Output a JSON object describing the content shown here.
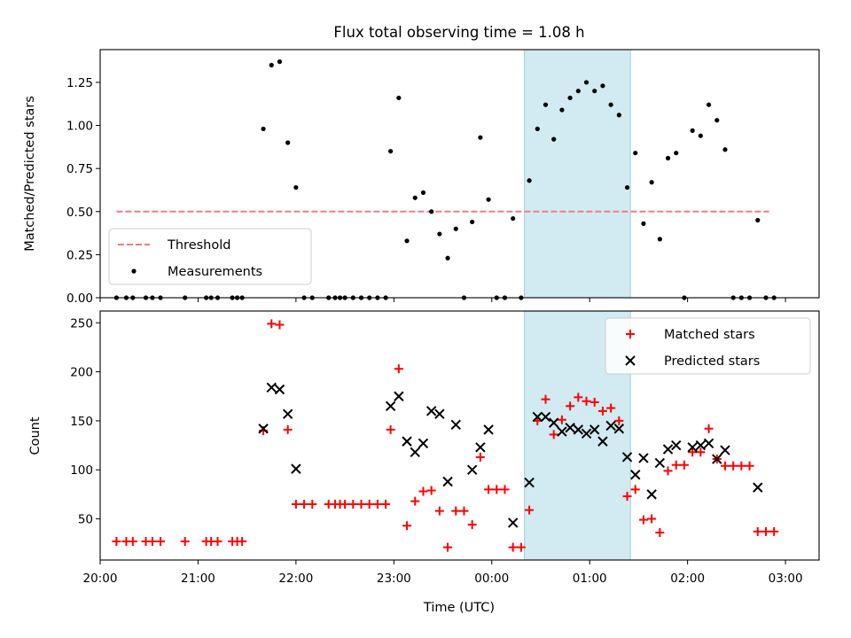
{
  "chart_data": [
    {
      "type": "scatter",
      "panel": "top",
      "title": "Flux total observing time = 1.08 h",
      "ylabel": "Matched/Predicted stars",
      "xlabel": "",
      "xlim": [
        "20:00",
        "03:15"
      ],
      "ylim": [
        0,
        1.44
      ],
      "yticks": [
        "0.00",
        "0.25",
        "0.50",
        "0.75",
        "1.00",
        "1.25"
      ],
      "highlight": {
        "from": "00:20",
        "to": "01:25",
        "color": "#add8e6"
      },
      "legend": {
        "placement": "lower-left"
      },
      "series": [
        {
          "name": "Threshold",
          "kind": "line",
          "color": "#f27d7d",
          "points": [
            [
              "20:10",
              0.5
            ],
            [
              "02:50",
              0.5
            ]
          ]
        },
        {
          "name": "Measurements",
          "kind": "dots",
          "color": "#000000",
          "points": [
            [
              "20:10",
              0
            ],
            [
              "20:16",
              0
            ],
            [
              "20:20",
              0
            ],
            [
              "20:28",
              0
            ],
            [
              "20:32",
              0
            ],
            [
              "20:37",
              0
            ],
            [
              "20:52",
              0
            ],
            [
              "21:05",
              0
            ],
            [
              "21:08",
              0
            ],
            [
              "21:12",
              0
            ],
            [
              "21:21",
              0
            ],
            [
              "21:24",
              0
            ],
            [
              "21:27",
              0
            ],
            [
              "21:40",
              0.98
            ],
            [
              "21:45",
              1.35
            ],
            [
              "21:50",
              1.37
            ],
            [
              "21:55",
              0.9
            ],
            [
              "22:00",
              0.64
            ],
            [
              "22:05",
              0
            ],
            [
              "22:10",
              0
            ],
            [
              "22:20",
              0
            ],
            [
              "22:24",
              0
            ],
            [
              "22:27",
              0
            ],
            [
              "22:30",
              0
            ],
            [
              "22:35",
              0
            ],
            [
              "22:40",
              0
            ],
            [
              "22:45",
              0
            ],
            [
              "22:50",
              0
            ],
            [
              "22:55",
              0
            ],
            [
              "22:58",
              0.85
            ],
            [
              "23:03",
              1.16
            ],
            [
              "23:08",
              0.33
            ],
            [
              "23:13",
              0.58
            ],
            [
              "23:18",
              0.61
            ],
            [
              "23:23",
              0.5
            ],
            [
              "23:28",
              0.37
            ],
            [
              "23:33",
              0.23
            ],
            [
              "23:38",
              0.4
            ],
            [
              "23:43",
              0
            ],
            [
              "23:48",
              0.44
            ],
            [
              "23:53",
              0.93
            ],
            [
              "23:58",
              0.57
            ],
            [
              "00:03",
              0
            ],
            [
              "00:08",
              0
            ],
            [
              "00:13",
              0.46
            ],
            [
              "00:18",
              0
            ],
            [
              "00:23",
              0.68
            ],
            [
              "00:28",
              0.98
            ],
            [
              "00:33",
              1.12
            ],
            [
              "00:38",
              0.92
            ],
            [
              "00:43",
              1.09
            ],
            [
              "00:48",
              1.16
            ],
            [
              "00:53",
              1.2
            ],
            [
              "00:58",
              1.25
            ],
            [
              "01:03",
              1.2
            ],
            [
              "01:08",
              1.23
            ],
            [
              "01:13",
              1.12
            ],
            [
              "01:18",
              1.06
            ],
            [
              "01:23",
              0.64
            ],
            [
              "01:28",
              0.84
            ],
            [
              "01:33",
              0.43
            ],
            [
              "01:38",
              0.67
            ],
            [
              "01:43",
              0.34
            ],
            [
              "01:48",
              0.81
            ],
            [
              "01:53",
              0.84
            ],
            [
              "01:58",
              0
            ],
            [
              "02:03",
              0.97
            ],
            [
              "02:08",
              0.94
            ],
            [
              "02:13",
              1.12
            ],
            [
              "02:18",
              1.03
            ],
            [
              "02:23",
              0.86
            ],
            [
              "02:28",
              0
            ],
            [
              "02:33",
              0
            ],
            [
              "02:38",
              0
            ],
            [
              "02:43",
              0.45
            ],
            [
              "02:48",
              0
            ],
            [
              "02:53",
              0
            ]
          ]
        }
      ]
    },
    {
      "type": "scatter",
      "panel": "bottom",
      "ylabel": "Count",
      "xlabel": "Time (UTC)",
      "xlim": [
        "20:00",
        "03:15"
      ],
      "ylim": [
        8,
        262
      ],
      "yticks": [
        "50",
        "100",
        "150",
        "200",
        "250"
      ],
      "xticks": [
        "20:00",
        "21:00",
        "22:00",
        "23:00",
        "00:00",
        "01:00",
        "02:00",
        "03:00"
      ],
      "highlight": {
        "from": "00:20",
        "to": "01:25",
        "color": "#add8e6"
      },
      "legend": {
        "placement": "upper-right"
      },
      "series": [
        {
          "name": "Matched stars",
          "kind": "plus",
          "color": "#ff0000",
          "points": [
            [
              "20:10",
              27
            ],
            [
              "20:16",
              27
            ],
            [
              "20:20",
              27
            ],
            [
              "20:28",
              27
            ],
            [
              "20:32",
              27
            ],
            [
              "20:37",
              27
            ],
            [
              "20:52",
              27
            ],
            [
              "21:05",
              27
            ],
            [
              "21:08",
              27
            ],
            [
              "21:12",
              27
            ],
            [
              "21:21",
              27
            ],
            [
              "21:24",
              27
            ],
            [
              "21:27",
              27
            ],
            [
              "21:40",
              140
            ],
            [
              "21:45",
              249
            ],
            [
              "21:50",
              248
            ],
            [
              "21:55",
              141
            ],
            [
              "22:00",
              65
            ],
            [
              "22:05",
              65
            ],
            [
              "22:10",
              65
            ],
            [
              "22:20",
              65
            ],
            [
              "22:24",
              65
            ],
            [
              "22:27",
              65
            ],
            [
              "22:30",
              65
            ],
            [
              "22:35",
              65
            ],
            [
              "22:40",
              65
            ],
            [
              "22:45",
              65
            ],
            [
              "22:50",
              65
            ],
            [
              "22:55",
              65
            ],
            [
              "22:58",
              141
            ],
            [
              "23:03",
              203
            ],
            [
              "23:08",
              43
            ],
            [
              "23:13",
              68
            ],
            [
              "23:18",
              78
            ],
            [
              "23:23",
              79
            ],
            [
              "23:28",
              58
            ],
            [
              "23:33",
              21
            ],
            [
              "23:38",
              58
            ],
            [
              "23:43",
              58
            ],
            [
              "23:48",
              44
            ],
            [
              "23:53",
              113
            ],
            [
              "23:58",
              80
            ],
            [
              "00:03",
              80
            ],
            [
              "00:08",
              80
            ],
            [
              "00:13",
              21
            ],
            [
              "00:18",
              21
            ],
            [
              "00:23",
              59
            ],
            [
              "00:28",
              150
            ],
            [
              "00:33",
              172
            ],
            [
              "00:38",
              136
            ],
            [
              "00:43",
              151
            ],
            [
              "00:48",
              165
            ],
            [
              "00:53",
              174
            ],
            [
              "00:58",
              170
            ],
            [
              "01:03",
              169
            ],
            [
              "01:08",
              160
            ],
            [
              "01:13",
              163
            ],
            [
              "01:18",
              150
            ],
            [
              "01:23",
              73
            ],
            [
              "01:28",
              80
            ],
            [
              "01:33",
              49
            ],
            [
              "01:38",
              50
            ],
            [
              "01:43",
              36
            ],
            [
              "01:48",
              99
            ],
            [
              "01:53",
              105
            ],
            [
              "01:58",
              105
            ],
            [
              "02:03",
              118
            ],
            [
              "02:08",
              118
            ],
            [
              "02:13",
              142
            ],
            [
              "02:18",
              111
            ],
            [
              "02:23",
              104
            ],
            [
              "02:28",
              104
            ],
            [
              "02:33",
              104
            ],
            [
              "02:38",
              104
            ],
            [
              "02:43",
              37
            ],
            [
              "02:48",
              37
            ],
            [
              "02:53",
              37
            ]
          ]
        },
        {
          "name": "Predicted stars",
          "kind": "cross",
          "color": "#000000",
          "points": [
            [
              "21:40",
              142
            ],
            [
              "21:45",
              184
            ],
            [
              "21:50",
              182
            ],
            [
              "21:55",
              157
            ],
            [
              "22:00",
              101
            ],
            [
              "22:58",
              165
            ],
            [
              "23:03",
              175
            ],
            [
              "23:08",
              129
            ],
            [
              "23:13",
              118
            ],
            [
              "23:18",
              127
            ],
            [
              "23:23",
              160
            ],
            [
              "23:28",
              157
            ],
            [
              "23:33",
              88
            ],
            [
              "23:38",
              146
            ],
            [
              "23:48",
              100
            ],
            [
              "23:53",
              123
            ],
            [
              "23:58",
              141
            ],
            [
              "00:13",
              46
            ],
            [
              "00:23",
              87
            ],
            [
              "00:28",
              154
            ],
            [
              "00:33",
              154
            ],
            [
              "00:38",
              148
            ],
            [
              "00:43",
              139
            ],
            [
              "00:48",
              143
            ],
            [
              "00:53",
              141
            ],
            [
              "00:58",
              137
            ],
            [
              "01:03",
              141
            ],
            [
              "01:08",
              129
            ],
            [
              "01:13",
              145
            ],
            [
              "01:18",
              142
            ],
            [
              "01:23",
              113
            ],
            [
              "01:28",
              95
            ],
            [
              "01:33",
              112
            ],
            [
              "01:38",
              75
            ],
            [
              "01:43",
              107
            ],
            [
              "01:48",
              121
            ],
            [
              "01:53",
              125
            ],
            [
              "02:03",
              123
            ],
            [
              "02:08",
              125
            ],
            [
              "02:13",
              127
            ],
            [
              "02:18",
              111
            ],
            [
              "02:23",
              120
            ],
            [
              "02:43",
              82
            ]
          ]
        }
      ]
    }
  ]
}
